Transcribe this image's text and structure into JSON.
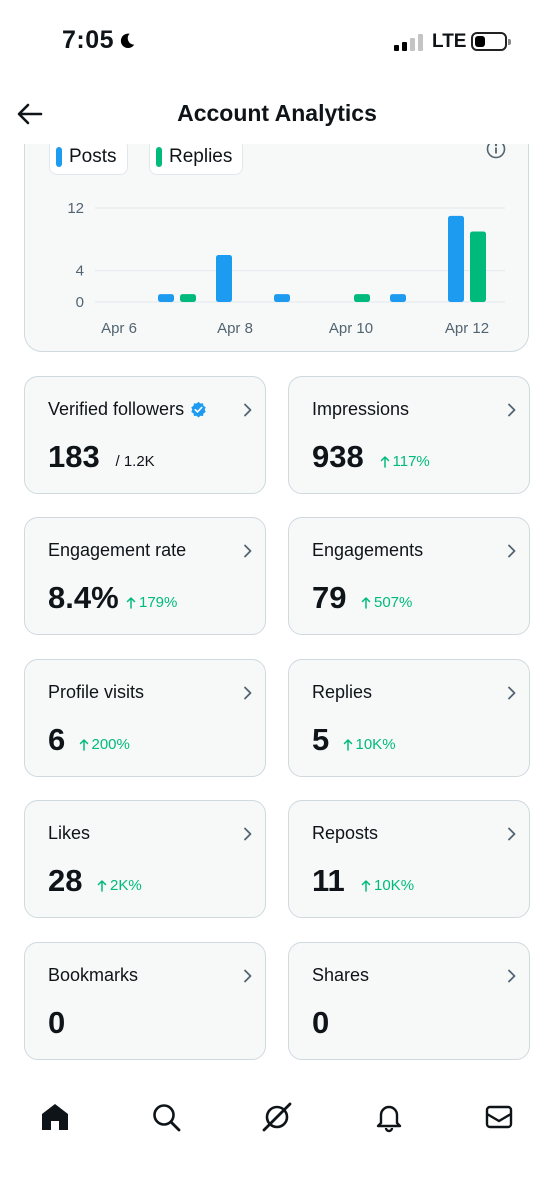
{
  "status_bar": {
    "time": "7:05",
    "network": "LTE"
  },
  "header": {
    "title": "Account Analytics",
    "back_icon": "back-arrow-icon"
  },
  "chart_data": {
    "type": "bar",
    "legend_position": "top-left",
    "grid": true,
    "categories": [
      "Apr 6",
      "Apr 7",
      "Apr 8",
      "Apr 9",
      "Apr 10",
      "Apr 11",
      "Apr 12"
    ],
    "x_tick_labels": [
      "Apr 6",
      "Apr 8",
      "Apr 10",
      "Apr 12"
    ],
    "y_ticks": [
      "12",
      "4",
      "0"
    ],
    "ylim": [
      0,
      14
    ],
    "series": [
      {
        "name": "Posts",
        "color": "#1d9bf0",
        "values": [
          0,
          1,
          6,
          1,
          0,
          1,
          11
        ]
      },
      {
        "name": "Replies",
        "color": "#00ba7c",
        "values": [
          0,
          1,
          0,
          0,
          1,
          0,
          9
        ]
      }
    ]
  },
  "stats": [
    {
      "label": "Verified followers",
      "value": "183",
      "sub": "/ 1.2K",
      "verified": true
    },
    {
      "label": "Impressions",
      "value": "938",
      "delta": "117%"
    },
    {
      "label": "Engagement rate",
      "value": "8.4%",
      "delta": "179%"
    },
    {
      "label": "Engagements",
      "value": "79",
      "delta": "507%"
    },
    {
      "label": "Profile visits",
      "value": "6",
      "delta": "200%"
    },
    {
      "label": "Replies",
      "value": "5",
      "delta": "10K%"
    },
    {
      "label": "Likes",
      "value": "28",
      "delta": "2K%"
    },
    {
      "label": "Reposts",
      "value": "11",
      "delta": "10K%"
    },
    {
      "label": "Bookmarks",
      "value": "0"
    },
    {
      "label": "Shares",
      "value": "0"
    }
  ],
  "colors": {
    "accent_blue": "#1d9bf0",
    "accent_green": "#00ba7c",
    "card_bg": "#f7f9f9",
    "border": "#cfd9de"
  },
  "bottom_nav": {
    "items": [
      "home-icon",
      "search-icon",
      "grok-icon",
      "notifications-icon",
      "messages-icon"
    ]
  }
}
